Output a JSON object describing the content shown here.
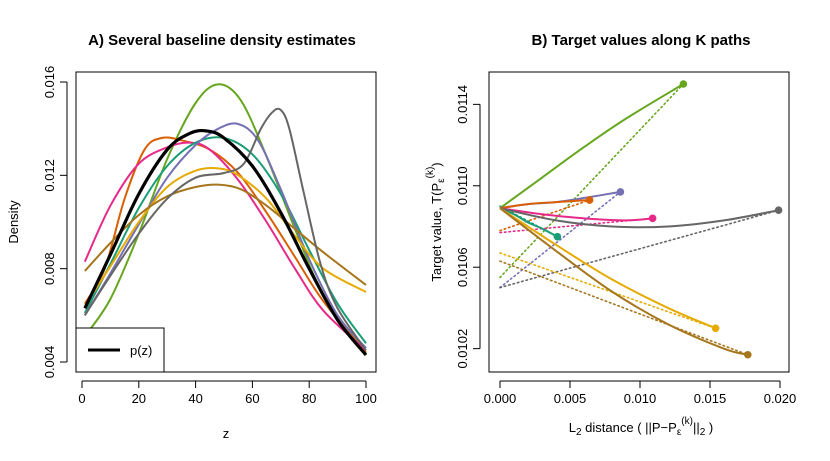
{
  "chart_data": [
    {
      "type": "line",
      "title": "A) Several baseline density estimates",
      "xlabel": "z",
      "ylabel": "Density",
      "xlim": [
        0,
        100
      ],
      "ylim": [
        0.004,
        0.016
      ],
      "xticks": [
        "0",
        "20",
        "40",
        "60",
        "80",
        "100"
      ],
      "yticks": [
        "0.004",
        "0.008",
        "0.012",
        "0.016"
      ],
      "grid": false,
      "legend": {
        "position": "bottom-left",
        "entries": [
          "p(z)"
        ]
      },
      "series": [
        {
          "color": "#66a61e",
          "x": [
            1,
            10,
            20,
            30,
            40,
            48,
            56,
            65,
            75,
            85,
            100
          ],
          "y": [
            0.0051,
            0.0067,
            0.0095,
            0.0127,
            0.0151,
            0.0159,
            0.0152,
            0.0128,
            0.0097,
            0.0069,
            0.0044
          ]
        },
        {
          "color": "#d95f02",
          "x": [
            1,
            8,
            15,
            22,
            28,
            35,
            45,
            55,
            65,
            75,
            85,
            100
          ],
          "y": [
            0.0065,
            0.008,
            0.011,
            0.0131,
            0.0136,
            0.0135,
            0.0131,
            0.0121,
            0.0104,
            0.0085,
            0.0066,
            0.0044
          ]
        },
        {
          "color": "#e7298a",
          "x": [
            1,
            10,
            20,
            30,
            38,
            45,
            55,
            65,
            75,
            85,
            100
          ],
          "y": [
            0.0083,
            0.0107,
            0.0125,
            0.0132,
            0.0134,
            0.0131,
            0.0118,
            0.01,
            0.008,
            0.0062,
            0.0045
          ]
        },
        {
          "color": "#1b9e77",
          "x": [
            1,
            10,
            20,
            30,
            40,
            50,
            60,
            70,
            80,
            90,
            100
          ],
          "y": [
            0.0061,
            0.0082,
            0.0106,
            0.0124,
            0.0134,
            0.0136,
            0.0129,
            0.0112,
            0.0088,
            0.0065,
            0.0048
          ]
        },
        {
          "color": "#7570b3",
          "x": [
            1,
            10,
            20,
            30,
            40,
            48,
            55,
            62,
            70,
            80,
            90,
            100
          ],
          "y": [
            0.006,
            0.0078,
            0.0099,
            0.0119,
            0.0133,
            0.014,
            0.0142,
            0.0135,
            0.0114,
            0.0084,
            0.006,
            0.0046
          ]
        },
        {
          "color": "#e6ab02",
          "x": [
            1,
            10,
            20,
            30,
            40,
            48,
            55,
            65,
            75,
            85,
            100
          ],
          "y": [
            0.0064,
            0.0081,
            0.01,
            0.0115,
            0.0122,
            0.0123,
            0.012,
            0.011,
            0.0094,
            0.008,
            0.007
          ]
        },
        {
          "color": "#a6761d",
          "x": [
            1,
            10,
            20,
            30,
            40,
            48,
            56,
            65,
            75,
            85,
            100
          ],
          "y": [
            0.0079,
            0.0091,
            0.0103,
            0.0111,
            0.0115,
            0.0116,
            0.0114,
            0.0107,
            0.0097,
            0.0087,
            0.0073
          ]
        },
        {
          "color": "#666666",
          "x": [
            1,
            10,
            20,
            30,
            40,
            50,
            57,
            63,
            67,
            70,
            73,
            78,
            84,
            90,
            100
          ],
          "y": [
            0.006,
            0.0077,
            0.0095,
            0.011,
            0.0119,
            0.0121,
            0.0125,
            0.014,
            0.0147,
            0.0148,
            0.014,
            0.0113,
            0.0082,
            0.0063,
            0.0045
          ]
        },
        {
          "color": "#000000",
          "bold": true,
          "legend": "p(z)",
          "x": [
            1,
            10,
            20,
            30,
            38,
            44,
            50,
            60,
            70,
            80,
            90,
            100
          ],
          "y": [
            0.0063,
            0.0086,
            0.0112,
            0.0131,
            0.0138,
            0.0139,
            0.0136,
            0.0124,
            0.0104,
            0.008,
            0.0058,
            0.0043
          ]
        }
      ]
    },
    {
      "type": "line",
      "title": "B) Target values along K paths",
      "xlabel": "L2 distance ( ||P−Pε(k)||2 )",
      "ylabel": "Target value, T(Pε(k))",
      "xlim": [
        0,
        0.02
      ],
      "ylim": [
        0.0101,
        0.0115
      ],
      "xticks": [
        "0.000",
        "0.005",
        "0.010",
        "0.015",
        "0.020"
      ],
      "yticks": [
        "0.0102",
        "0.0106",
        "0.0110",
        "0.0114"
      ],
      "grid": false,
      "series": [
        {
          "color": "#66a61e",
          "x": [
            0,
            0.003,
            0.006,
            0.009,
            0.0131
          ],
          "y": [
            0.01089,
            0.01104,
            0.01119,
            0.01133,
            0.0115
          ],
          "tangent": [
            [
              0,
              0.01055
            ],
            [
              0.0131,
              0.0115
            ]
          ]
        },
        {
          "color": "#7570b3",
          "x": [
            0,
            0.002,
            0.004,
            0.006,
            0.0086
          ],
          "y": [
            0.01089,
            0.01091,
            0.01092,
            0.01094,
            0.01097
          ],
          "tangent": [
            [
              0,
              0.0105
            ],
            [
              0.0086,
              0.01097
            ]
          ]
        },
        {
          "color": "#d95f02",
          "x": [
            0,
            0.002,
            0.004,
            0.0064
          ],
          "y": [
            0.01089,
            0.01091,
            0.01092,
            0.01093
          ],
          "tangent": [
            [
              0,
              0.01078
            ],
            [
              0.0064,
              0.01093
            ]
          ]
        },
        {
          "color": "#e7298a",
          "x": [
            0,
            0.003,
            0.006,
            0.009,
            0.0109
          ],
          "y": [
            0.01089,
            0.01086,
            0.01084,
            0.01083,
            0.01084
          ],
          "tangent": [
            [
              0,
              0.01077
            ],
            [
              0.0109,
              0.01084
            ]
          ]
        },
        {
          "color": "#1b9e77",
          "x": [
            0,
            0.001,
            0.002,
            0.003,
            0.0041
          ],
          "y": [
            0.01089,
            0.01086,
            0.01082,
            0.01079,
            0.01075
          ],
          "tangent": [
            [
              0,
              0.0109
            ],
            [
              0.0041,
              0.01075
            ]
          ]
        },
        {
          "color": "#666666",
          "x": [
            0,
            0.004,
            0.008,
            0.012,
            0.016,
            0.0199
          ],
          "y": [
            0.01089,
            0.01083,
            0.0108,
            0.0108,
            0.01083,
            0.01088
          ],
          "tangent": [
            [
              0,
              0.0105
            ],
            [
              0.0199,
              0.01088
            ]
          ]
        },
        {
          "color": "#e6ab02",
          "x": [
            0,
            0.004,
            0.008,
            0.012,
            0.0154
          ],
          "y": [
            0.01089,
            0.01071,
            0.01054,
            0.0104,
            0.0103
          ],
          "tangent": [
            [
              0,
              0.01067
            ],
            [
              0.0154,
              0.0103
            ]
          ]
        },
        {
          "color": "#a6761d",
          "x": [
            0,
            0.004,
            0.008,
            0.012,
            0.016,
            0.0177
          ],
          "y": [
            0.01089,
            0.01068,
            0.01048,
            0.01032,
            0.0102,
            0.01017
          ],
          "tangent": [
            [
              0,
              0.01063
            ],
            [
              0.0177,
              0.01017
            ]
          ]
        }
      ]
    }
  ]
}
